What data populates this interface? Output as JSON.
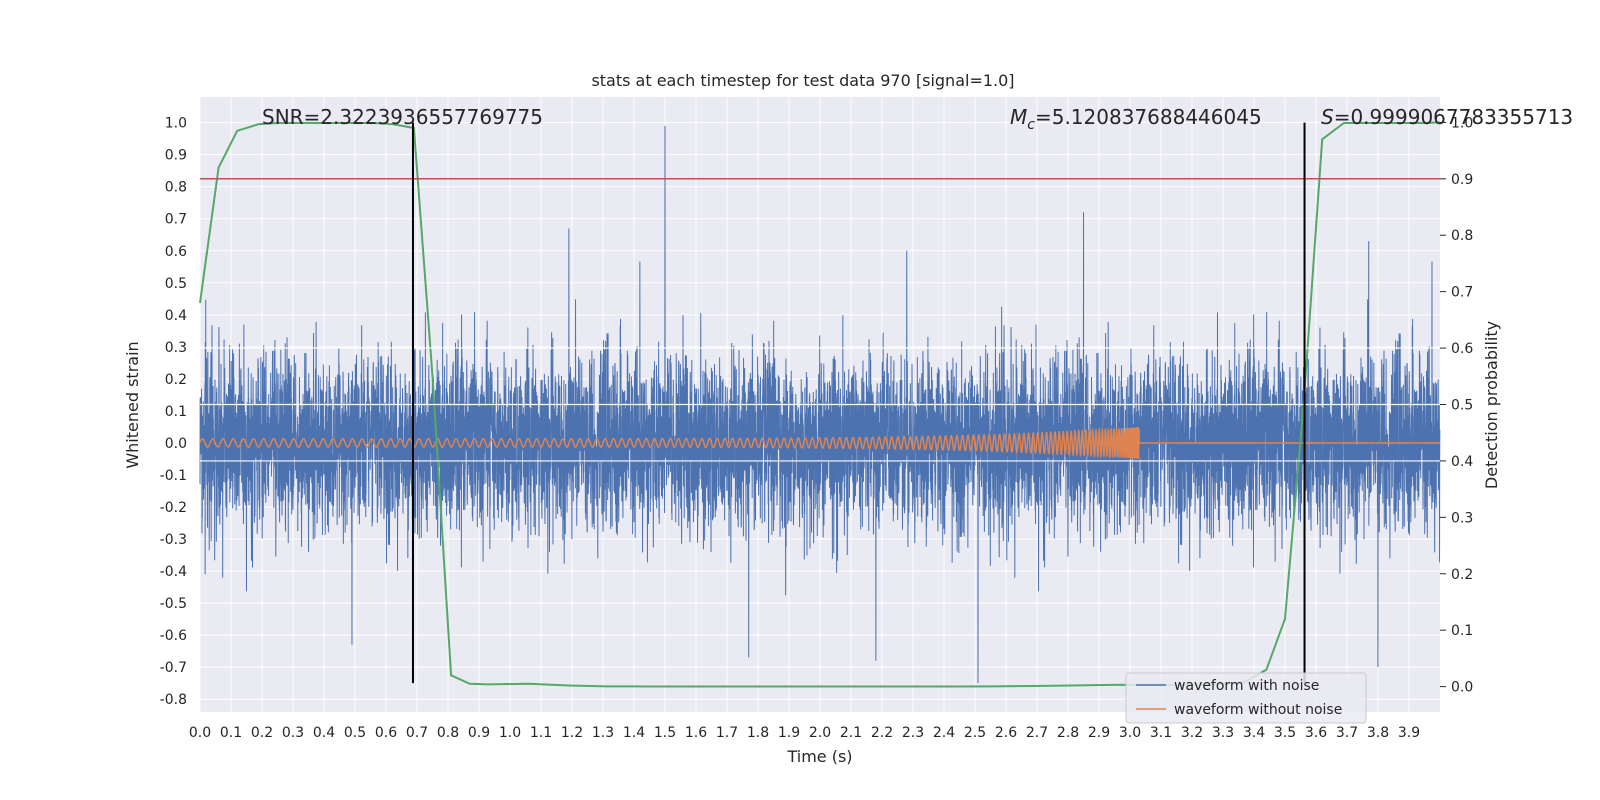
{
  "chart_data": {
    "type": "line",
    "title": "stats at each timestep for test data 970 [signal=1.0]",
    "xlabel": "Time (s)",
    "ylabel": "Whitened strain",
    "y2label": "Detection probability",
    "xlim": [
      0.0,
      4.0
    ],
    "ylim": [
      -0.84,
      1.08
    ],
    "y2lim": [
      -0.045,
      1.045
    ],
    "x_ticks": [
      "0.0",
      "0.1",
      "0.2",
      "0.3",
      "0.4",
      "0.5",
      "0.6",
      "0.7",
      "0.8",
      "0.9",
      "1.0",
      "1.1",
      "1.2",
      "1.3",
      "1.4",
      "1.5",
      "1.6",
      "1.7",
      "1.8",
      "1.9",
      "2.0",
      "2.1",
      "2.2",
      "2.3",
      "2.4",
      "2.5",
      "2.6",
      "2.7",
      "2.8",
      "2.9",
      "3.0",
      "3.1",
      "3.2",
      "3.3",
      "3.4",
      "3.5",
      "3.6",
      "3.7",
      "3.8",
      "3.9"
    ],
    "y_ticks": [
      "-0.8",
      "-0.7",
      "-0.6",
      "-0.5",
      "-0.4",
      "-0.3",
      "-0.2",
      "-0.1",
      "0.0",
      "0.1",
      "0.2",
      "0.3",
      "0.4",
      "0.5",
      "0.6",
      "0.7",
      "0.8",
      "0.9",
      "1.0"
    ],
    "y2_ticks": [
      "0.0",
      "0.1",
      "0.2",
      "0.3",
      "0.4",
      "0.5",
      "0.6",
      "0.7",
      "0.8",
      "0.9",
      "1.0"
    ],
    "grid": true,
    "legend_position": "lower-right",
    "annotations": {
      "snr": "SNR=2.3223936557769775",
      "mc_symbol": "M",
      "mc_sub": "c",
      "mc_value": "=5.120837688446045",
      "s_symbol": "S",
      "s_value": "=0.9999067783355713"
    },
    "colors": {
      "noise": "#4c72b0",
      "clean": "#dd8452",
      "prob": "#55a868",
      "threshold": "#c44e52",
      "marker": "#000000",
      "plot_bg": "#eaeaf2",
      "grid": "#ffffff"
    },
    "series": [
      {
        "name": "waveform with noise",
        "axis": "left",
        "sample_rate_hz": 2048,
        "noise_std": 0.19,
        "peaks": [
          {
            "x": 1.5,
            "y": 0.99
          },
          {
            "x": 2.51,
            "y": -0.75
          },
          {
            "x": 2.85,
            "y": 0.72
          },
          {
            "x": 1.19,
            "y": 0.67
          },
          {
            "x": 3.8,
            "y": -0.7
          },
          {
            "x": 3.77,
            "y": 0.63
          },
          {
            "x": 0.49,
            "y": -0.63
          },
          {
            "x": 1.77,
            "y": -0.67
          },
          {
            "x": 2.18,
            "y": -0.68
          },
          {
            "x": 2.28,
            "y": 0.6
          }
        ]
      },
      {
        "name": "waveform without noise",
        "axis": "left",
        "chirp": {
          "t_merger": 3.03,
          "f_start": 30,
          "amp_start": 0.013,
          "amp_end": 0.05
        }
      },
      {
        "name": "detection probability",
        "axis": "right",
        "x": [
          0.0,
          0.06,
          0.12,
          0.19,
          0.25,
          0.31,
          0.37,
          0.44,
          0.5,
          0.56,
          0.62,
          0.69,
          0.75,
          0.81,
          0.87,
          0.93,
          1.06,
          1.19,
          1.31,
          1.44,
          1.56,
          1.69,
          1.81,
          1.94,
          2.06,
          2.19,
          2.31,
          2.44,
          2.56,
          2.69,
          2.81,
          2.94,
          3.06,
          3.19,
          3.31,
          3.37,
          3.44,
          3.5,
          3.56,
          3.62,
          3.69,
          3.75,
          3.81,
          3.87,
          3.94,
          4.0
        ],
        "values": [
          0.68,
          0.92,
          0.985,
          0.997,
          0.999,
          0.999,
          0.999,
          0.999,
          0.999,
          0.999,
          0.997,
          0.99,
          0.55,
          0.02,
          0.005,
          0.004,
          0.005,
          0.002,
          0.0005,
          0.0003,
          0.0003,
          0.0003,
          0.0003,
          0.0003,
          0.0003,
          0.0003,
          0.0003,
          0.0003,
          0.0005,
          0.001,
          0.002,
          0.003,
          0.003,
          0.003,
          0.005,
          0.008,
          0.03,
          0.12,
          0.5,
          0.97,
          0.999,
          0.999,
          0.999,
          0.999,
          0.999,
          1.0
        ]
      }
    ],
    "threshold_y2": 0.9,
    "markers_x": [
      0.687,
      3.563
    ],
    "marker_y_range": [
      -0.75,
      1.0
    ],
    "gridline_y2": [
      0.4,
      0.5,
      0.6
    ]
  }
}
